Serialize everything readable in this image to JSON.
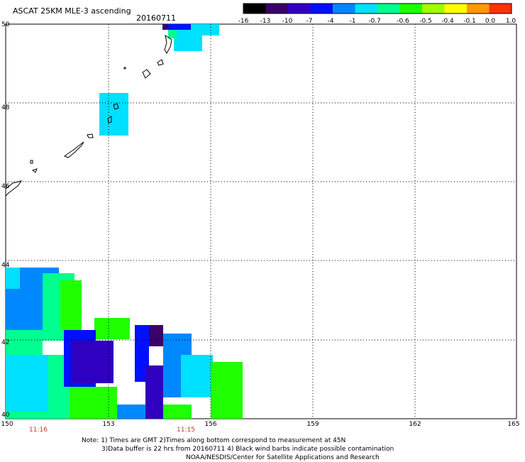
{
  "title": "ASCAT 25KM MLE-3 ascending",
  "date": "20160711",
  "colorbar": {
    "labels": [
      "-16",
      "-13",
      "-10",
      "-7",
      "-4",
      "-1",
      "-0.7",
      "-0.6",
      "-0.5",
      "-0.4",
      "-0.1",
      "0.0",
      "1.0"
    ],
    "colors": [
      "#000000",
      "#3a006b",
      "#3000c0",
      "#0010ff",
      "#0088ff",
      "#00e0ff",
      "#00ff90",
      "#20ff00",
      "#a0ff00",
      "#ffff00",
      "#ff9900",
      "#ff3300"
    ]
  },
  "lat_labels": [
    "50",
    "48",
    "46",
    "44",
    "42",
    "40"
  ],
  "lon_labels": [
    "150",
    "153",
    "156",
    "159",
    "162",
    "165"
  ],
  "time_labels": [
    "11:16",
    "11:15"
  ],
  "notes": [
    "Note: 1) Times are GMT 2)Times along bottom correspond to measurement at 45N",
    "3)Data buffer is 22 hrs from 20160711 4) Black wind barbs indicate possible contamination",
    "NOAA/NESDIS/Center for Satellite Applications and Research"
  ],
  "map": {
    "lon_range": [
      150,
      165
    ],
    "lat_range": [
      40,
      50
    ],
    "grid": true,
    "coastline": "Kuril Islands"
  }
}
